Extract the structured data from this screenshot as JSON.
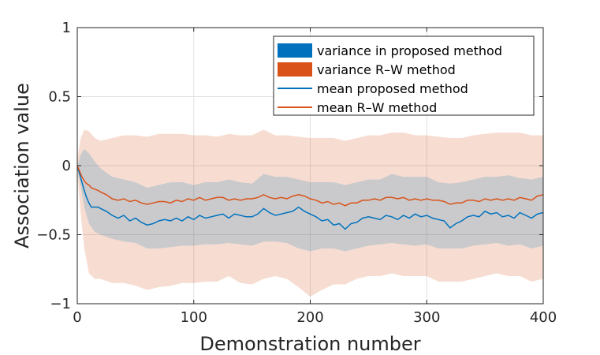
{
  "chart_data": {
    "type": "line",
    "title": "",
    "xlabel": "Demonstration number",
    "ylabel": "Association value",
    "xlim": [
      0,
      400
    ],
    "ylim": [
      -1,
      1
    ],
    "xticks": [
      0,
      100,
      200,
      300,
      400
    ],
    "yticks": [
      1,
      0.5,
      0,
      -0.5,
      -1
    ],
    "xtick_labels": [
      "0",
      "100",
      "200",
      "300",
      "400"
    ],
    "ytick_labels": [
      "1",
      "0.5",
      "0",
      "−0.5",
      "−1"
    ],
    "grid": true,
    "legend_position": "top-right",
    "series": [
      {
        "name": "variance in proposed method",
        "kind": "band",
        "color": "#0072BD",
        "x": [
          0,
          3,
          6,
          10,
          15,
          20,
          30,
          40,
          50,
          60,
          70,
          80,
          90,
          100,
          110,
          120,
          130,
          140,
          150,
          160,
          170,
          180,
          190,
          200,
          210,
          220,
          230,
          240,
          250,
          260,
          270,
          280,
          290,
          300,
          310,
          320,
          330,
          340,
          350,
          360,
          370,
          380,
          390,
          400
        ],
        "lower": [
          -0.02,
          -0.15,
          -0.3,
          -0.42,
          -0.48,
          -0.5,
          -0.53,
          -0.55,
          -0.56,
          -0.6,
          -0.6,
          -0.59,
          -0.58,
          -0.58,
          -0.57,
          -0.57,
          -0.56,
          -0.57,
          -0.58,
          -0.55,
          -0.55,
          -0.56,
          -0.6,
          -0.62,
          -0.6,
          -0.6,
          -0.62,
          -0.6,
          -0.58,
          -0.57,
          -0.56,
          -0.57,
          -0.58,
          -0.57,
          -0.6,
          -0.6,
          -0.6,
          -0.58,
          -0.57,
          -0.56,
          -0.58,
          -0.57,
          -0.6,
          -0.58
        ],
        "upper": [
          0.0,
          0.08,
          0.12,
          0.09,
          0.03,
          -0.02,
          -0.08,
          -0.1,
          -0.12,
          -0.16,
          -0.14,
          -0.12,
          -0.12,
          -0.14,
          -0.12,
          -0.12,
          -0.1,
          -0.12,
          -0.13,
          -0.06,
          -0.08,
          -0.08,
          -0.1,
          -0.12,
          -0.12,
          -0.12,
          -0.14,
          -0.12,
          -0.1,
          -0.1,
          -0.06,
          -0.08,
          -0.08,
          -0.08,
          -0.12,
          -0.13,
          -0.12,
          -0.1,
          -0.08,
          -0.08,
          -0.07,
          -0.09,
          -0.1,
          -0.08
        ]
      },
      {
        "name": "variance R–W method",
        "kind": "band",
        "color": "#D95319",
        "x": [
          0,
          3,
          6,
          10,
          15,
          20,
          30,
          40,
          50,
          60,
          70,
          80,
          90,
          100,
          110,
          120,
          130,
          140,
          150,
          160,
          170,
          180,
          190,
          200,
          210,
          220,
          230,
          240,
          250,
          260,
          270,
          280,
          290,
          300,
          310,
          320,
          330,
          340,
          350,
          360,
          370,
          380,
          390,
          400
        ],
        "lower": [
          -0.05,
          -0.35,
          -0.6,
          -0.78,
          -0.82,
          -0.82,
          -0.85,
          -0.85,
          -0.87,
          -0.9,
          -0.88,
          -0.87,
          -0.85,
          -0.85,
          -0.84,
          -0.84,
          -0.8,
          -0.85,
          -0.86,
          -0.82,
          -0.8,
          -0.82,
          -0.88,
          -0.95,
          -0.9,
          -0.86,
          -0.86,
          -0.82,
          -0.8,
          -0.8,
          -0.78,
          -0.8,
          -0.8,
          -0.8,
          -0.84,
          -0.84,
          -0.84,
          -0.82,
          -0.8,
          -0.78,
          -0.8,
          -0.8,
          -0.84,
          -0.82
        ],
        "upper": [
          0.05,
          0.2,
          0.26,
          0.25,
          0.2,
          0.18,
          0.2,
          0.22,
          0.22,
          0.21,
          0.23,
          0.23,
          0.23,
          0.22,
          0.22,
          0.21,
          0.23,
          0.22,
          0.22,
          0.26,
          0.22,
          0.22,
          0.21,
          0.2,
          0.2,
          0.2,
          0.18,
          0.2,
          0.22,
          0.22,
          0.24,
          0.24,
          0.22,
          0.22,
          0.21,
          0.2,
          0.2,
          0.22,
          0.23,
          0.24,
          0.24,
          0.24,
          0.22,
          0.22
        ]
      },
      {
        "name": "mean proposed method",
        "kind": "line",
        "color": "#0072BD",
        "x": [
          0,
          2,
          4,
          6,
          8,
          10,
          12,
          15,
          18,
          20,
          25,
          30,
          35,
          40,
          45,
          50,
          55,
          60,
          65,
          70,
          75,
          80,
          85,
          90,
          95,
          100,
          105,
          110,
          115,
          120,
          125,
          130,
          135,
          140,
          145,
          150,
          155,
          160,
          165,
          170,
          175,
          180,
          185,
          190,
          195,
          200,
          205,
          210,
          215,
          220,
          225,
          230,
          235,
          240,
          245,
          250,
          255,
          260,
          265,
          270,
          275,
          280,
          285,
          290,
          295,
          300,
          305,
          310,
          315,
          320,
          325,
          330,
          335,
          340,
          345,
          350,
          355,
          360,
          365,
          370,
          375,
          380,
          385,
          390,
          395,
          400
        ],
        "y": [
          0.0,
          -0.06,
          -0.12,
          -0.18,
          -0.23,
          -0.27,
          -0.3,
          -0.3,
          -0.3,
          -0.31,
          -0.33,
          -0.36,
          -0.38,
          -0.36,
          -0.4,
          -0.38,
          -0.41,
          -0.43,
          -0.42,
          -0.4,
          -0.39,
          -0.4,
          -0.38,
          -0.4,
          -0.37,
          -0.39,
          -0.36,
          -0.38,
          -0.37,
          -0.36,
          -0.35,
          -0.38,
          -0.35,
          -0.36,
          -0.37,
          -0.37,
          -0.35,
          -0.31,
          -0.34,
          -0.36,
          -0.35,
          -0.34,
          -0.33,
          -0.3,
          -0.33,
          -0.35,
          -0.37,
          -0.4,
          -0.39,
          -0.43,
          -0.42,
          -0.46,
          -0.42,
          -0.41,
          -0.38,
          -0.37,
          -0.38,
          -0.39,
          -0.36,
          -0.37,
          -0.39,
          -0.36,
          -0.38,
          -0.35,
          -0.37,
          -0.36,
          -0.38,
          -0.39,
          -0.4,
          -0.45,
          -0.42,
          -0.4,
          -0.37,
          -0.36,
          -0.37,
          -0.33,
          -0.35,
          -0.34,
          -0.37,
          -0.36,
          -0.38,
          -0.34,
          -0.36,
          -0.38,
          -0.35,
          -0.34
        ]
      },
      {
        "name": "mean R–W method",
        "kind": "line",
        "color": "#D95319",
        "x": [
          0,
          2,
          4,
          6,
          8,
          10,
          12,
          15,
          18,
          20,
          25,
          30,
          35,
          40,
          45,
          50,
          55,
          60,
          65,
          70,
          75,
          80,
          85,
          90,
          95,
          100,
          105,
          110,
          115,
          120,
          125,
          130,
          135,
          140,
          145,
          150,
          155,
          160,
          165,
          170,
          175,
          180,
          185,
          190,
          195,
          200,
          205,
          210,
          215,
          220,
          225,
          230,
          235,
          240,
          245,
          250,
          255,
          260,
          265,
          270,
          275,
          280,
          285,
          290,
          295,
          300,
          305,
          310,
          315,
          320,
          325,
          330,
          335,
          340,
          345,
          350,
          355,
          360,
          365,
          370,
          375,
          380,
          385,
          390,
          395,
          400
        ],
        "y": [
          0.0,
          -0.04,
          -0.08,
          -0.11,
          -0.13,
          -0.14,
          -0.16,
          -0.17,
          -0.18,
          -0.19,
          -0.21,
          -0.24,
          -0.25,
          -0.24,
          -0.26,
          -0.25,
          -0.27,
          -0.28,
          -0.27,
          -0.26,
          -0.26,
          -0.27,
          -0.25,
          -0.26,
          -0.24,
          -0.25,
          -0.23,
          -0.25,
          -0.24,
          -0.23,
          -0.23,
          -0.25,
          -0.24,
          -0.25,
          -0.24,
          -0.24,
          -0.23,
          -0.21,
          -0.23,
          -0.24,
          -0.23,
          -0.24,
          -0.22,
          -0.21,
          -0.22,
          -0.24,
          -0.25,
          -0.27,
          -0.26,
          -0.28,
          -0.27,
          -0.29,
          -0.27,
          -0.27,
          -0.25,
          -0.25,
          -0.24,
          -0.25,
          -0.23,
          -0.23,
          -0.24,
          -0.23,
          -0.25,
          -0.24,
          -0.25,
          -0.24,
          -0.25,
          -0.25,
          -0.26,
          -0.28,
          -0.27,
          -0.27,
          -0.25,
          -0.25,
          -0.26,
          -0.24,
          -0.25,
          -0.24,
          -0.25,
          -0.24,
          -0.25,
          -0.23,
          -0.24,
          -0.25,
          -0.22,
          -0.21
        ]
      }
    ]
  }
}
